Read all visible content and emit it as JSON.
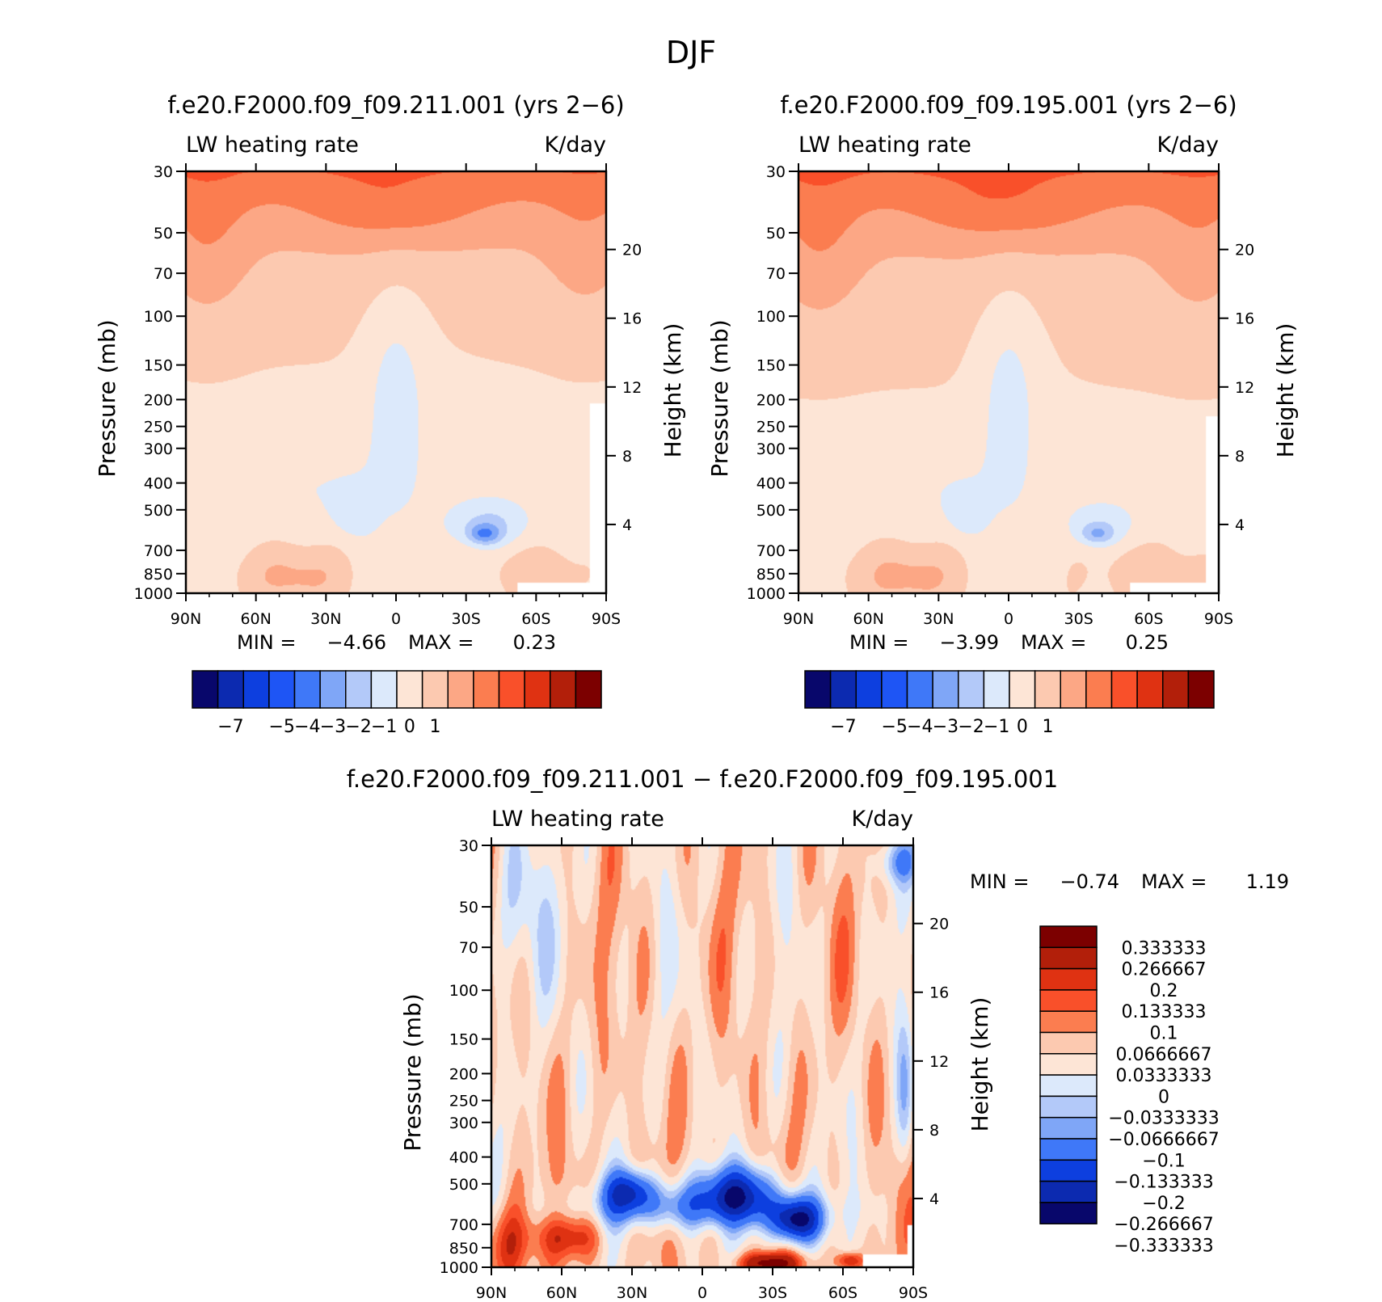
{
  "figure": {
    "title": "DJF"
  },
  "colors": {
    "model_scale": [
      "#08076b",
      "#0c2ab0",
      "#0d3fdf",
      "#1e55f5",
      "#3f78f8",
      "#7fa6f7",
      "#b3c9f9",
      "#dce9fb",
      "#fde5d6",
      "#fcc9b0",
      "#fca785",
      "#fb7d50",
      "#f9502a",
      "#df3212",
      "#b21f0a",
      "#7c0000"
    ],
    "diff_scale": [
      "#08076b",
      "#0c2ab0",
      "#0d3fdf",
      "#3f78f8",
      "#7fa6f7",
      "#b3c9f9",
      "#dce9fb",
      "#fde5d6",
      "#fcc9b0",
      "#fb7d50",
      "#f9502a",
      "#df3212",
      "#b21f0a",
      "#7c0000"
    ]
  },
  "chart_data": [
    {
      "type": "heatmap",
      "id": "panel_model_a",
      "title": "f.e20.F2000.f09_f09.211.001 (yrs 2−6)",
      "left_label": "LW heating rate",
      "right_label": "K/day",
      "xlabel": "",
      "ylabel": "Pressure (mb)",
      "y2label": "Height (km)",
      "x_ticks": [
        "90N",
        "60N",
        "30N",
        "0",
        "30S",
        "60S",
        "90S"
      ],
      "y_ticks": [
        "30",
        "50",
        "70",
        "100",
        "150",
        "200",
        "250",
        "300",
        "400",
        "500",
        "700",
        "850",
        "1000"
      ],
      "height_ticks": [
        "20",
        "16",
        "12",
        "8",
        "4"
      ],
      "stats": {
        "min_label": "MIN =",
        "min": "−4.66",
        "max_label": "MAX =",
        "max": "0.23"
      },
      "colorbar": {
        "labels": [
          "−7",
          "−5",
          "−4",
          "−3",
          "−2",
          "−1",
          "0",
          "1"
        ]
      }
    },
    {
      "type": "heatmap",
      "id": "panel_model_b",
      "title": "f.e20.F2000.f09_f09.195.001 (yrs 2−6)",
      "left_label": "LW heating rate",
      "right_label": "K/day",
      "xlabel": "",
      "ylabel": "Pressure (mb)",
      "y2label": "Height (km)",
      "x_ticks": [
        "90N",
        "60N",
        "30N",
        "0",
        "30S",
        "60S",
        "90S"
      ],
      "y_ticks": [
        "30",
        "50",
        "70",
        "100",
        "150",
        "200",
        "250",
        "300",
        "400",
        "500",
        "700",
        "850",
        "1000"
      ],
      "height_ticks": [
        "20",
        "16",
        "12",
        "8",
        "4"
      ],
      "stats": {
        "min_label": "MIN =",
        "min": "−3.99",
        "max_label": "MAX =",
        "max": "0.25"
      },
      "colorbar": {
        "labels": [
          "−7",
          "−5",
          "−4",
          "−3",
          "−2",
          "−1",
          "0",
          "1"
        ]
      }
    },
    {
      "type": "heatmap",
      "id": "panel_diff",
      "title": "f.e20.F2000.f09_f09.211.001 − f.e20.F2000.f09_f09.195.001",
      "left_label": "LW heating rate",
      "right_label": "K/day",
      "xlabel": "",
      "ylabel": "Pressure (mb)",
      "y2label": "Height (km)",
      "x_ticks": [
        "90N",
        "60N",
        "30N",
        "0",
        "30S",
        "60S",
        "90S"
      ],
      "y_ticks": [
        "30",
        "50",
        "70",
        "100",
        "150",
        "200",
        "250",
        "300",
        "400",
        "500",
        "700",
        "850",
        "1000"
      ],
      "height_ticks": [
        "20",
        "16",
        "12",
        "8",
        "4"
      ],
      "stats": {
        "min_label": "MIN =",
        "min": "−0.74",
        "max_label": "MAX =",
        "max": "1.19"
      },
      "colorbar": {
        "labels": [
          "0.333333",
          "0.266667",
          "0.2",
          "0.133333",
          "0.1",
          "0.0666667",
          "0.0333333",
          "0",
          "−0.0333333",
          "−0.0666667",
          "−0.1",
          "−0.133333",
          "−0.2",
          "−0.266667",
          "−0.333333"
        ]
      }
    }
  ]
}
